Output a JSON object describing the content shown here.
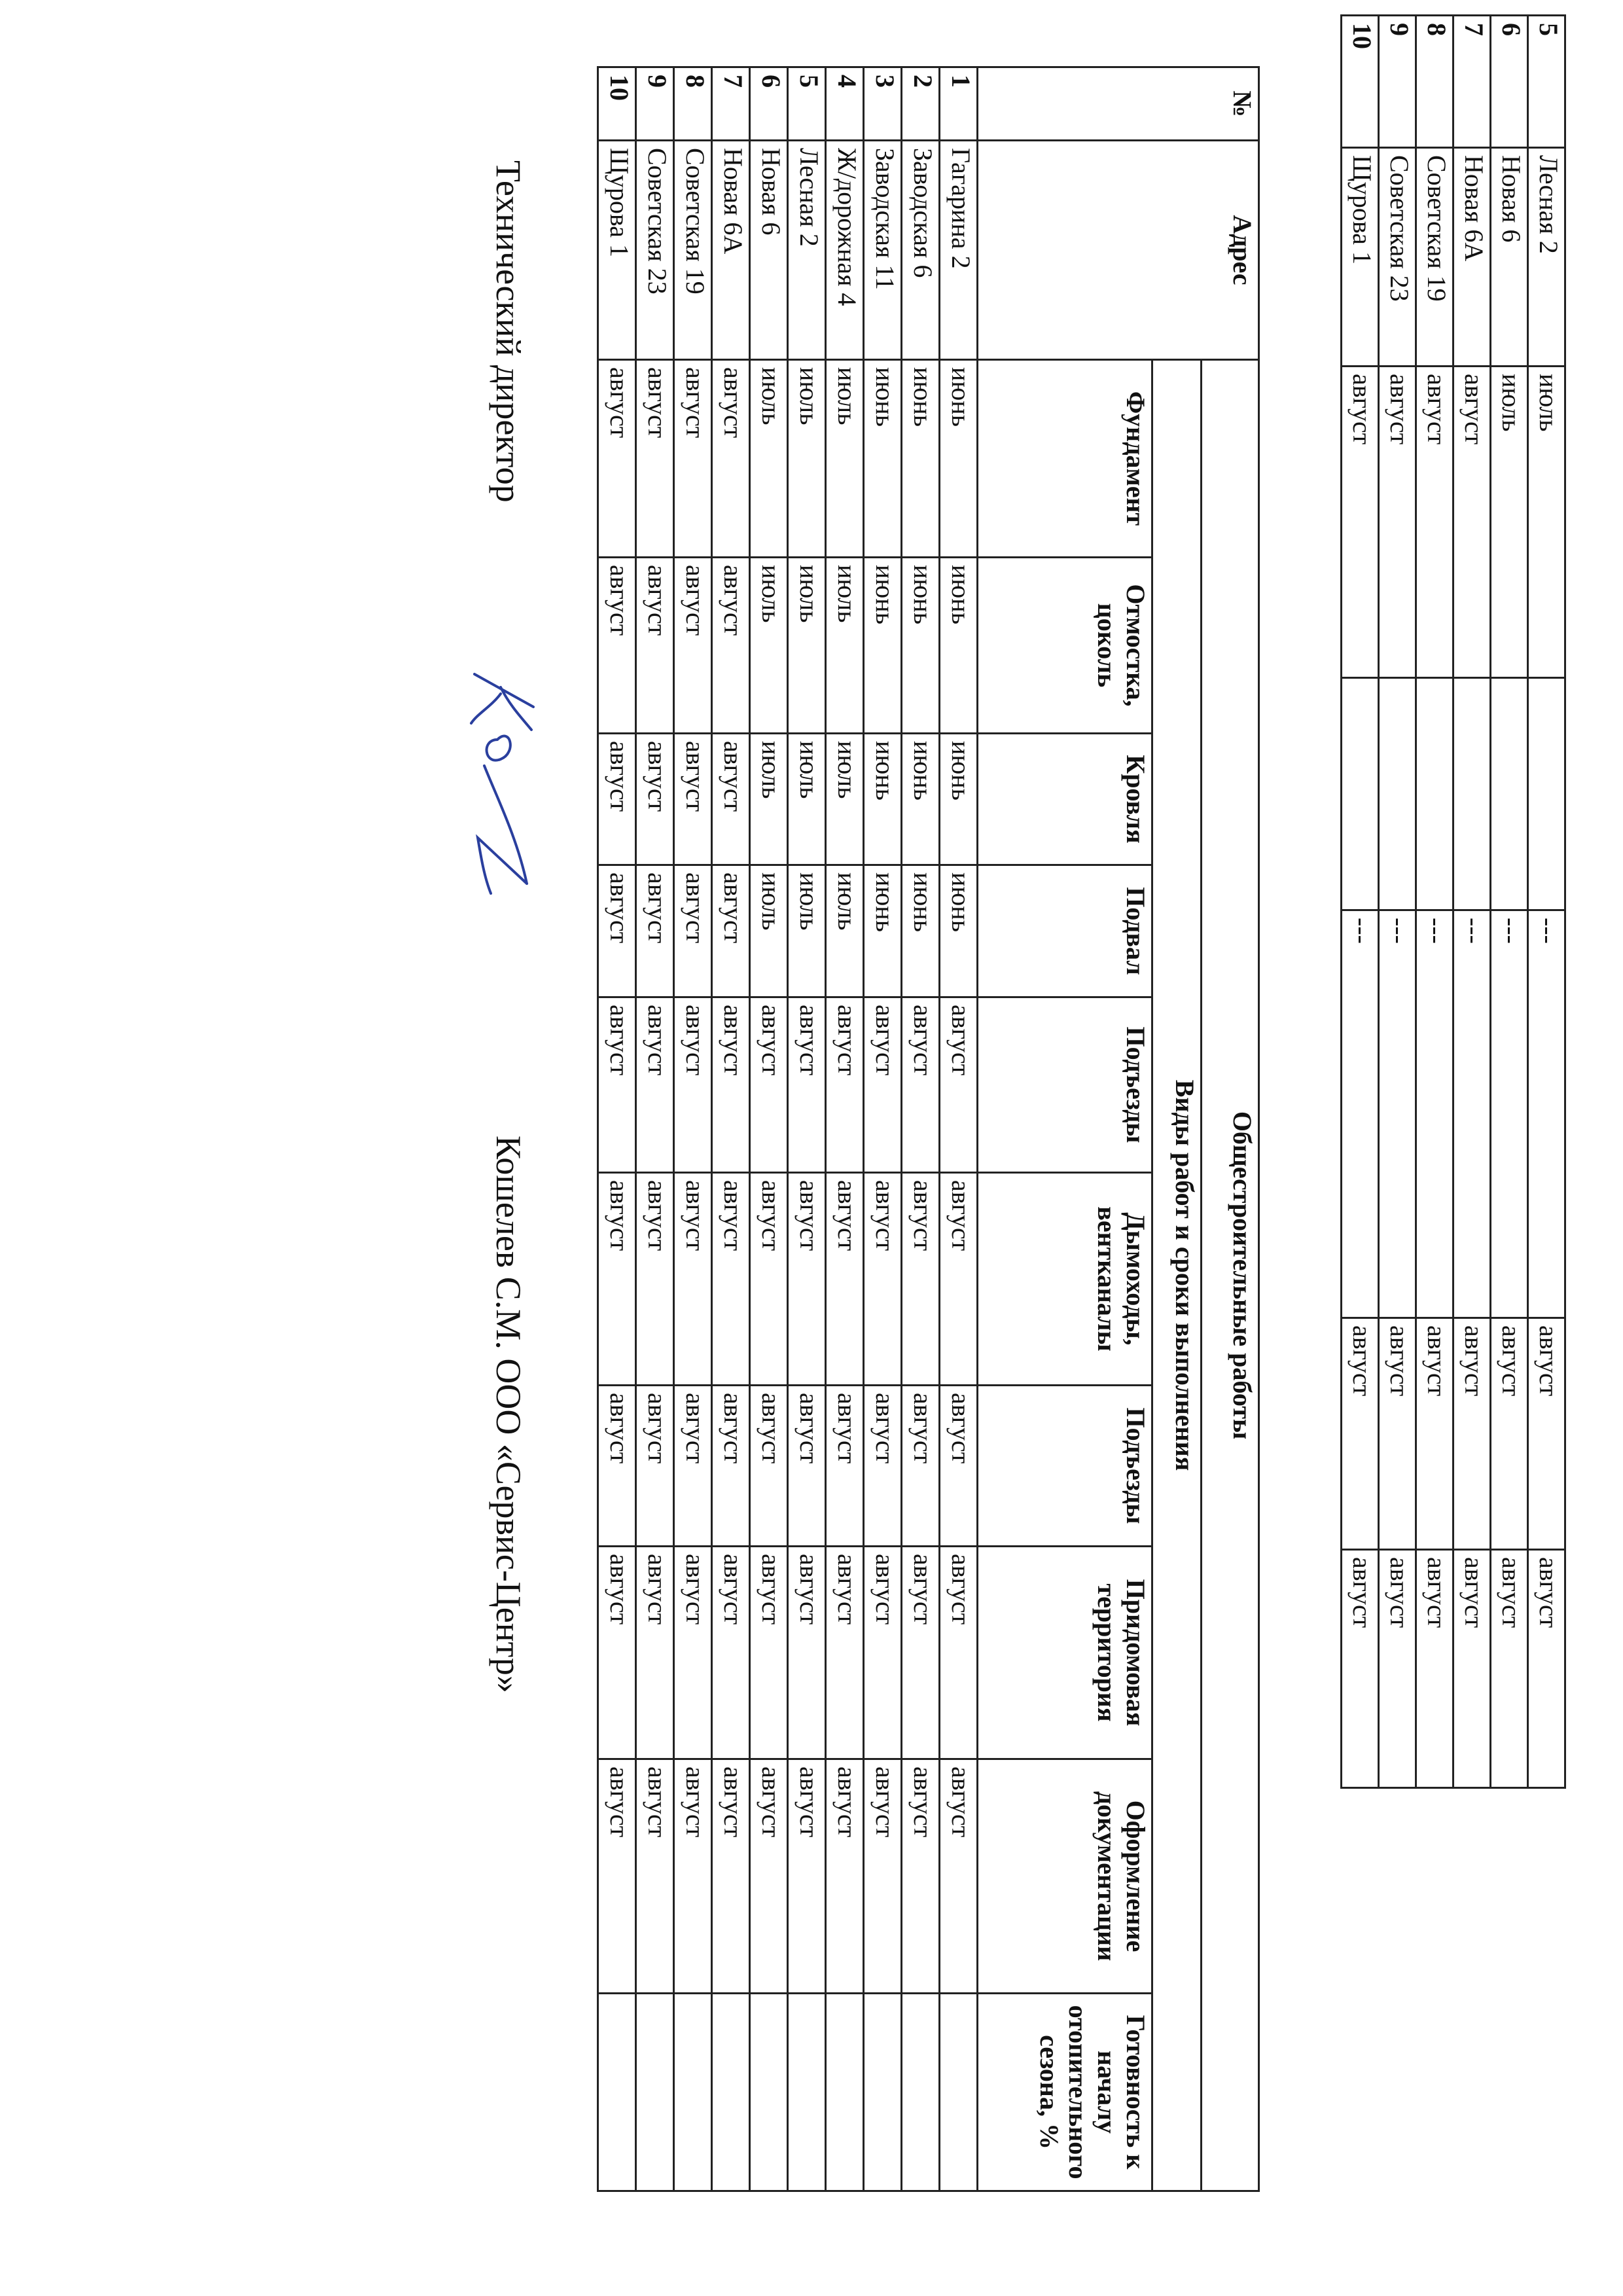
{
  "continuation_table": {
    "rows": [
      {
        "num": "5",
        "address": "Лесная 2",
        "cells": [
          "июль",
          "",
          "---",
          "август",
          "август",
          ""
        ]
      },
      {
        "num": "6",
        "address": "Новая 6",
        "cells": [
          "июль",
          "",
          "---",
          "август",
          "август",
          ""
        ]
      },
      {
        "num": "7",
        "address": "Новая 6А",
        "cells": [
          "август",
          "",
          "---",
          "август",
          "август",
          ""
        ]
      },
      {
        "num": "8",
        "address": "Советская 19",
        "cells": [
          "август",
          "",
          "---",
          "август",
          "август",
          ""
        ]
      },
      {
        "num": "9",
        "address": "Советская 23",
        "cells": [
          "август",
          "",
          "---",
          "август",
          "август",
          ""
        ]
      },
      {
        "num": "10",
        "address": "Щурова 1",
        "cells": [
          "август",
          "",
          "---",
          "август",
          "август",
          ""
        ]
      }
    ]
  },
  "main_table": {
    "header": {
      "num": "№",
      "address": "Адрес",
      "group": "Общестроительные работы",
      "subgroup": "Виды работ и сроки выполнения",
      "columns": [
        "Фундамент",
        "Отмостка, цоколь",
        "Кровля",
        "Подвал",
        "Подъезды",
        "Дымоходы, вентканалы",
        "Подъезды",
        "Придомовая территория",
        "Оформление документации",
        "Готовность к началу отопительного сезона, %"
      ]
    },
    "rows": [
      {
        "num": "1",
        "address": "Гагарина 2",
        "cells": [
          "июнь",
          "июнь",
          "июнь",
          "июнь",
          "август",
          "август",
          "август",
          "август",
          "август",
          ""
        ]
      },
      {
        "num": "2",
        "address": "Заводская 6",
        "cells": [
          "июнь",
          "июнь",
          "июнь",
          "июнь",
          "август",
          "август",
          "август",
          "август",
          "август",
          ""
        ]
      },
      {
        "num": "3",
        "address": "Заводская 11",
        "cells": [
          "июнь",
          "июнь",
          "июнь",
          "июнь",
          "август",
          "август",
          "август",
          "август",
          "август",
          ""
        ]
      },
      {
        "num": "4",
        "address": "Ж/дорожная 4",
        "cells": [
          "июль",
          "июль",
          "июль",
          "июль",
          "август",
          "август",
          "август",
          "август",
          "август",
          ""
        ]
      },
      {
        "num": "5",
        "address": "Лесная 2",
        "cells": [
          "июль",
          "июль",
          "июль",
          "июль",
          "август",
          "август",
          "август",
          "август",
          "август",
          ""
        ]
      },
      {
        "num": "6",
        "address": "Новая 6",
        "cells": [
          "июль",
          "июль",
          "июль",
          "июль",
          "август",
          "август",
          "август",
          "август",
          "август",
          ""
        ]
      },
      {
        "num": "7",
        "address": "Новая 6А",
        "cells": [
          "август",
          "август",
          "август",
          "август",
          "август",
          "август",
          "август",
          "август",
          "август",
          ""
        ]
      },
      {
        "num": "8",
        "address": "Советская 19",
        "cells": [
          "август",
          "август",
          "август",
          "август",
          "август",
          "август",
          "август",
          "август",
          "август",
          ""
        ]
      },
      {
        "num": "9",
        "address": "Советская 23",
        "cells": [
          "август",
          "август",
          "август",
          "август",
          "август",
          "август",
          "август",
          "август",
          "август",
          ""
        ]
      },
      {
        "num": "10",
        "address": "Щурова 1",
        "cells": [
          "август",
          "август",
          "август",
          "август",
          "август",
          "август",
          "август",
          "август",
          "август",
          ""
        ]
      }
    ]
  },
  "footer": {
    "position": "Технический директор",
    "name": "Кошелев С.М. ООО «Сервис-Центр»",
    "signature_color": "#2a3f9e"
  }
}
